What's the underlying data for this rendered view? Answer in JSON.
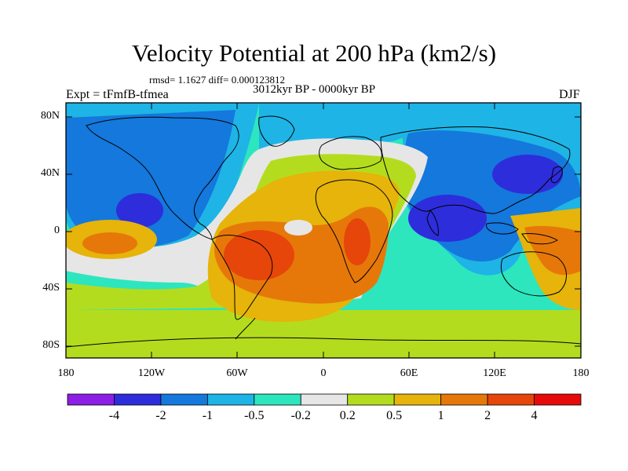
{
  "title": "Velocity Potential at 200 hPa (km2/s)",
  "stats_line": "rmsd= 1.1627 diff= 0.000123812",
  "subtitle": "3012kyr BP - 0000kyr BP",
  "experiment": "Expt = tFmfB-tfmea",
  "season": "DJF",
  "lat_ticks": [
    "80N",
    "40N",
    "0",
    "40S",
    "80S"
  ],
  "lon_ticks": [
    "180",
    "120W",
    "60W",
    "0",
    "60E",
    "120E",
    "180"
  ],
  "colorbar": {
    "colors": [
      "#8c1ee6",
      "#2d2ddc",
      "#1478dc",
      "#1eb4e6",
      "#2de6be",
      "#e6e6e6",
      "#b4dc1e",
      "#e6b40a",
      "#e6780a",
      "#e6460a",
      "#e60a0a"
    ],
    "labels": [
      "-4",
      "-2",
      "-1",
      "-0.5",
      "-0.2",
      "0.2",
      "0.5",
      "1",
      "2",
      "4"
    ]
  }
}
